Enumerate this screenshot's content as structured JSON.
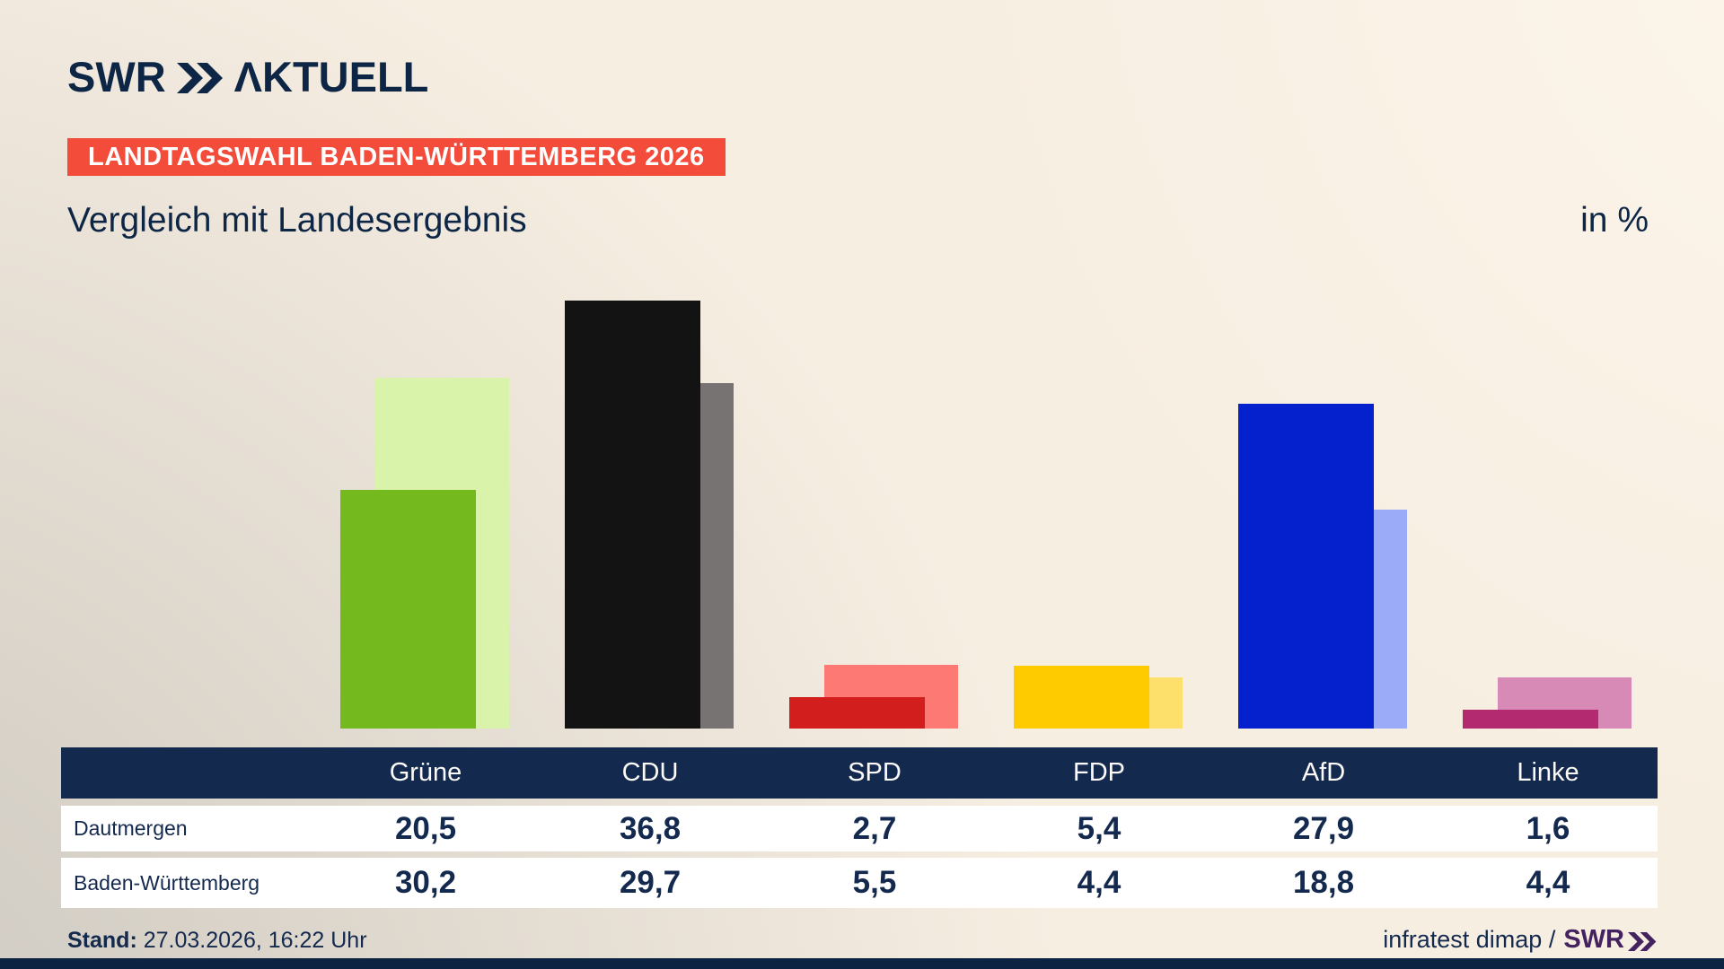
{
  "header": {
    "logo": {
      "swr": "SWR",
      "aktuell": "ΛKTUELL"
    },
    "badge": "LANDTAGSWAHL BADEN-WÜRTTEMBERG 2026",
    "title": "Vergleich mit Landesergebnis",
    "unit_label": "in %"
  },
  "chart_data": {
    "type": "bar",
    "title": "Vergleich mit Landesergebnis",
    "unit": "%",
    "categories": [
      "Grüne",
      "CDU",
      "SPD",
      "FDP",
      "AfD",
      "Linke"
    ],
    "series": [
      {
        "name": "Dautmergen",
        "values": [
          20.5,
          36.8,
          2.7,
          5.4,
          27.9,
          1.6
        ],
        "colors": [
          "#74b91e",
          "#131313",
          "#d31e1e",
          "#fecb00",
          "#0521cd",
          "#b42a70"
        ]
      },
      {
        "name": "Baden-Württemberg",
        "values": [
          30.2,
          29.7,
          5.5,
          4.4,
          18.8,
          4.4
        ],
        "colors": [
          "#d9f3ab",
          "#767372",
          "#fd7974",
          "#fde06c",
          "#9babf8",
          "#d88ab6"
        ]
      }
    ],
    "ylim": [
      0,
      38
    ],
    "grid": false,
    "legend_position": "table-below-chart"
  },
  "table": {
    "columns": [
      "Grüne",
      "CDU",
      "SPD",
      "FDP",
      "AfD",
      "Linke"
    ],
    "rows": [
      {
        "label": "Dautmergen",
        "values": [
          "20,5",
          "36,8",
          "2,7",
          "5,4",
          "27,9",
          "1,6"
        ]
      },
      {
        "label": "Baden-Württemberg",
        "values": [
          "30,2",
          "29,7",
          "5,5",
          "4,4",
          "18,8",
          "4,4"
        ]
      }
    ]
  },
  "footer": {
    "stand_label": "Stand:",
    "stand_value": " 27.03.2026, 16:22 Uhr",
    "source_text": "infratest dimap /",
    "source_logo": "SWR"
  },
  "colors": {
    "navy": "#14294e",
    "badge_red": "#f44c3a",
    "swr_purple": "#44215f",
    "background_cream": "#f7eee2",
    "background_gray": "#d0cdc8"
  }
}
